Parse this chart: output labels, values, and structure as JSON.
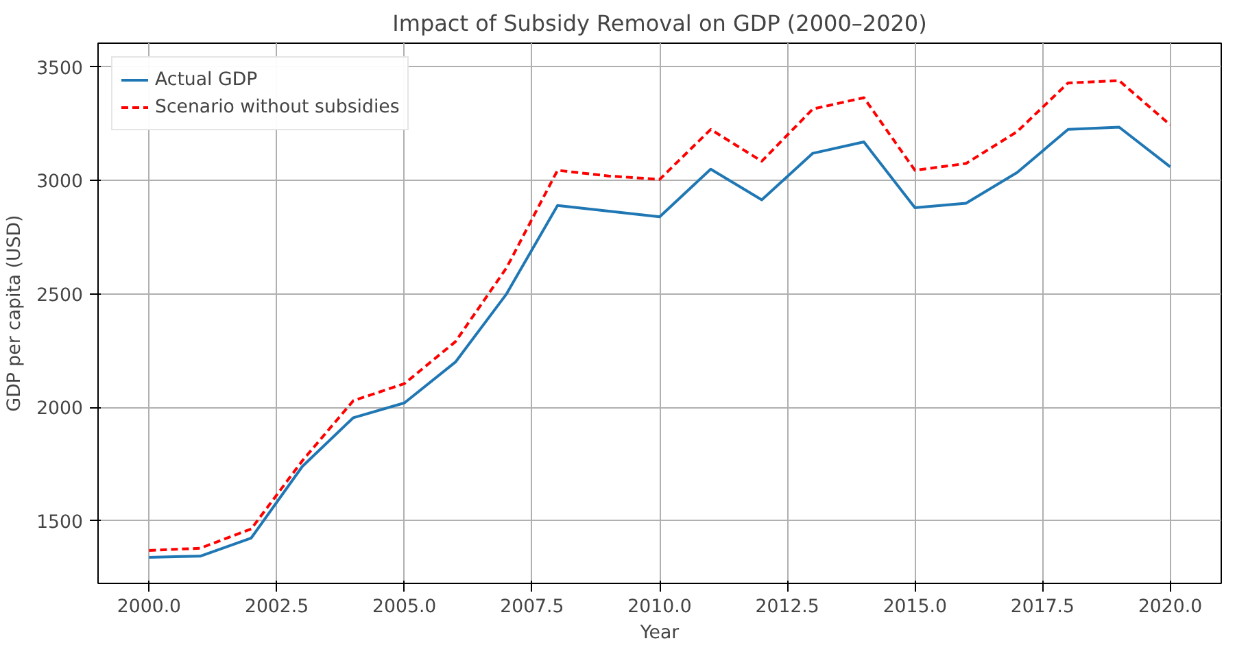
{
  "chart_data": {
    "type": "line",
    "title": "Impact of Subsidy Removal on GDP (2000–2020)",
    "xlabel": "Year",
    "ylabel": "GDP per capita (USD)",
    "x": [
      2000,
      2001,
      2002,
      2003,
      2004,
      2005,
      2006,
      2007,
      2008,
      2009,
      2010,
      2011,
      2012,
      2013,
      2014,
      2015,
      2016,
      2017,
      2018,
      2019,
      2020
    ],
    "series": [
      {
        "name": "Actual GDP",
        "color": "#1f77b4",
        "line_style": "solid",
        "values": [
          1340,
          1345,
          1425,
          1740,
          1955,
          2020,
          2200,
          2500,
          2890,
          2865,
          2840,
          3050,
          2915,
          3120,
          3170,
          2880,
          2900,
          3035,
          3225,
          3235,
          3060
        ]
      },
      {
        "name": "Scenario without subsidies",
        "color": "#ff0000",
        "line_style": "dashed",
        "values": [
          1370,
          1380,
          1465,
          1765,
          2030,
          2105,
          2290,
          2615,
          3045,
          3020,
          3005,
          3225,
          3085,
          3315,
          3365,
          3045,
          3075,
          3215,
          3430,
          3440,
          3245
        ]
      }
    ],
    "xlim": [
      1999.0,
      2021.0
    ],
    "ylim": [
      1225,
      3605
    ],
    "xticks": [
      {
        "value": 2000,
        "label": "2000.0"
      },
      {
        "value": 2002.5,
        "label": "2002.5"
      },
      {
        "value": 2005,
        "label": "2005.0"
      },
      {
        "value": 2007.5,
        "label": "2007.5"
      },
      {
        "value": 2010,
        "label": "2010.0"
      },
      {
        "value": 2012.5,
        "label": "2012.5"
      },
      {
        "value": 2015,
        "label": "2015.0"
      },
      {
        "value": 2017.5,
        "label": "2017.5"
      },
      {
        "value": 2020,
        "label": "2020.0"
      }
    ],
    "yticks": [
      1500,
      2000,
      2500,
      3000,
      3500
    ],
    "grid": true,
    "legend": "top left",
    "marker": "none"
  }
}
